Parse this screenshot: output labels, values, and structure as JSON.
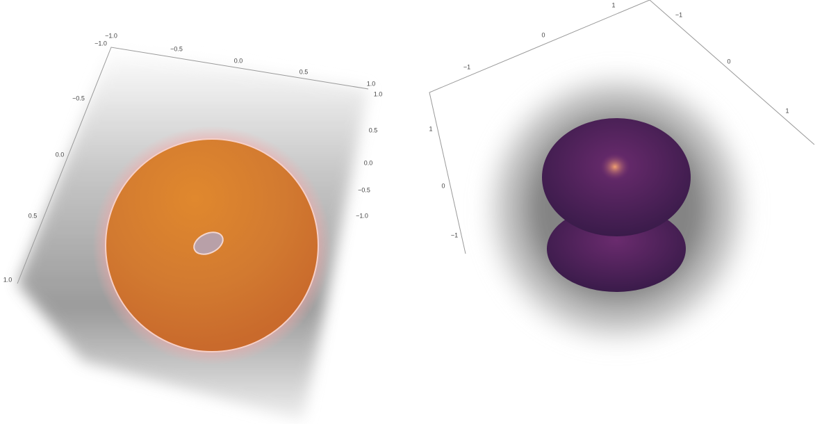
{
  "left_plot": {
    "top_axis_ticks": [
      "−1.0",
      "−0.5",
      "0.0",
      "0.5",
      "1.0"
    ],
    "right_axis_ticks": [
      "1.0",
      "0.5",
      "0.0",
      "−0.5",
      "−1.0"
    ],
    "left_axis_ticks": [
      "−1.0",
      "−0.5",
      "0.0",
      "0.5",
      "1.0"
    ]
  },
  "right_plot": {
    "top_axis_ticks": [
      "−1",
      "0",
      "1"
    ],
    "side_axis_ticks": [
      "−1",
      "0",
      "1"
    ],
    "left_axis_ticks": [
      "1",
      "0",
      "−1"
    ]
  }
}
